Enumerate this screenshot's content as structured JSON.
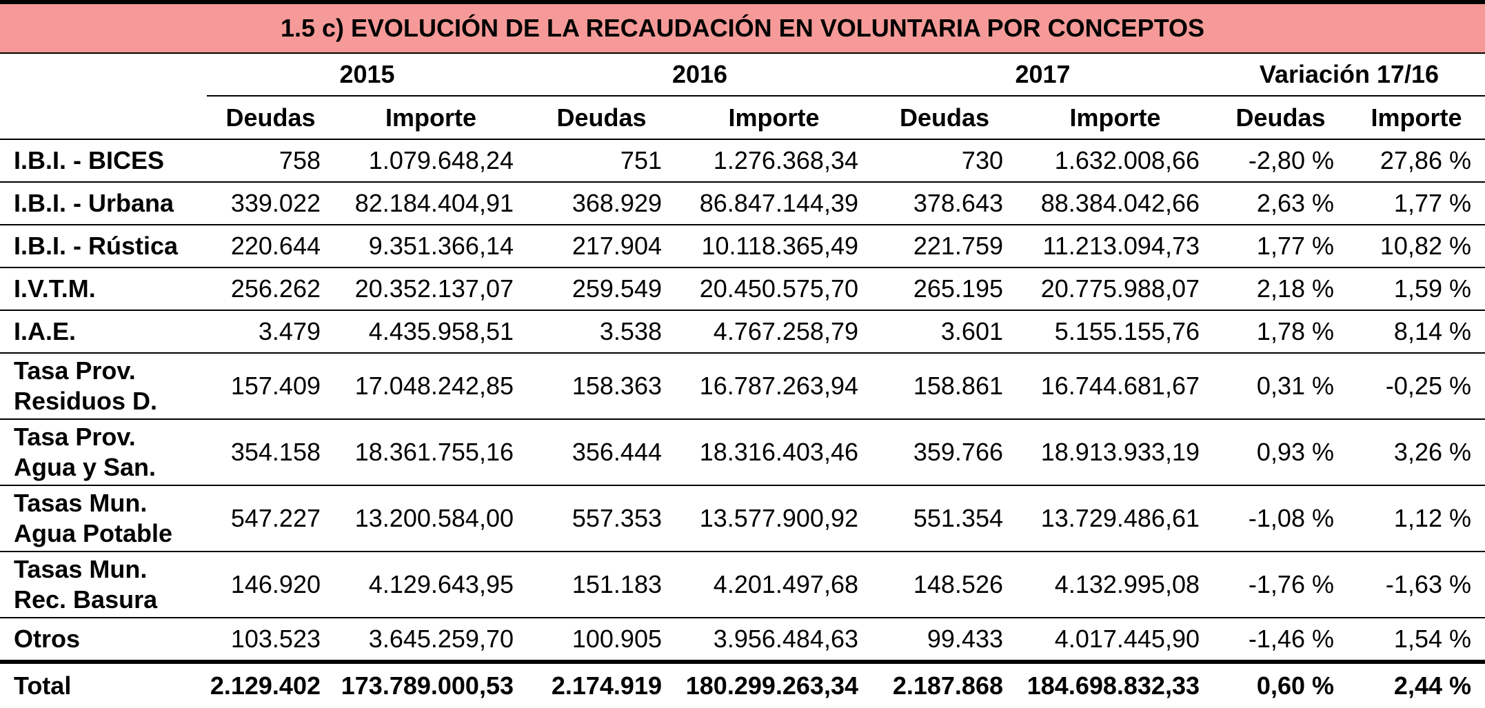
{
  "title": "1.5 c) EVOLUCIÓN DE LA RECAUDACIÓN EN VOLUNTARIA POR CONCEPTOS",
  "colors": {
    "title_bg": "#f59a98",
    "border": "#000000"
  },
  "header": {
    "years": [
      "2015",
      "2016",
      "2017",
      "Variación 17/16"
    ],
    "sub": [
      "Deudas",
      "Importe",
      "Deudas",
      "Importe",
      "Deudas",
      "Importe",
      "Deudas",
      "Importe"
    ]
  },
  "rows": [
    {
      "label": "I.B.I. - BICES",
      "values": [
        "758",
        "1.079.648,24",
        "751",
        "1.276.368,34",
        "730",
        "1.632.008,66",
        "-2,80 %",
        "27,86 %"
      ]
    },
    {
      "label": "I.B.I. - Urbana",
      "values": [
        "339.022",
        "82.184.404,91",
        "368.929",
        "86.847.144,39",
        "378.643",
        "88.384.042,66",
        "2,63 %",
        "1,77 %"
      ]
    },
    {
      "label": "I.B.I. - Rústica",
      "values": [
        "220.644",
        "9.351.366,14",
        "217.904",
        "10.118.365,49",
        "221.759",
        "11.213.094,73",
        "1,77 %",
        "10,82 %"
      ]
    },
    {
      "label": "I.V.T.M.",
      "values": [
        "256.262",
        "20.352.137,07",
        "259.549",
        "20.450.575,70",
        "265.195",
        "20.775.988,07",
        "2,18 %",
        "1,59 %"
      ]
    },
    {
      "label": "I.A.E.",
      "values": [
        "3.479",
        "4.435.958,51",
        "3.538",
        "4.767.258,79",
        "3.601",
        "5.155.155,76",
        "1,78 %",
        "8,14 %"
      ]
    },
    {
      "label": "Tasa Prov. Residuos D.",
      "label_lines": [
        "Tasa Prov.",
        "Residuos D."
      ],
      "values": [
        "157.409",
        "17.048.242,85",
        "158.363",
        "16.787.263,94",
        "158.861",
        "16.744.681,67",
        "0,31 %",
        "-0,25 %"
      ]
    },
    {
      "label": "Tasa Prov. Agua y San.",
      "label_lines": [
        "Tasa Prov.",
        "Agua y San."
      ],
      "values": [
        "354.158",
        "18.361.755,16",
        "356.444",
        "18.316.403,46",
        "359.766",
        "18.913.933,19",
        "0,93 %",
        "3,26 %"
      ]
    },
    {
      "label": "Tasas Mun. Agua Potable",
      "label_lines": [
        "Tasas Mun.",
        "Agua Potable"
      ],
      "values": [
        "547.227",
        "13.200.584,00",
        "557.353",
        "13.577.900,92",
        "551.354",
        "13.729.486,61",
        "-1,08 %",
        "1,12 %"
      ]
    },
    {
      "label": "Tasas Mun. Rec. Basura",
      "label_lines": [
        "Tasas Mun.",
        "Rec. Basura"
      ],
      "values": [
        "146.920",
        "4.129.643,95",
        "151.183",
        "4.201.497,68",
        "148.526",
        "4.132.995,08",
        "-1,76 %",
        "-1,63 %"
      ]
    },
    {
      "label": "Otros",
      "values": [
        "103.523",
        "3.645.259,70",
        "100.905",
        "3.956.484,63",
        "99.433",
        "4.017.445,90",
        "-1,46 %",
        "1,54 %"
      ]
    }
  ],
  "total": {
    "label": "Total",
    "values": [
      "2.129.402",
      "173.789.000,53",
      "2.174.919",
      "180.299.263,34",
      "2.187.868",
      "184.698.832,33",
      "0,60 %",
      "2,44 %"
    ]
  }
}
